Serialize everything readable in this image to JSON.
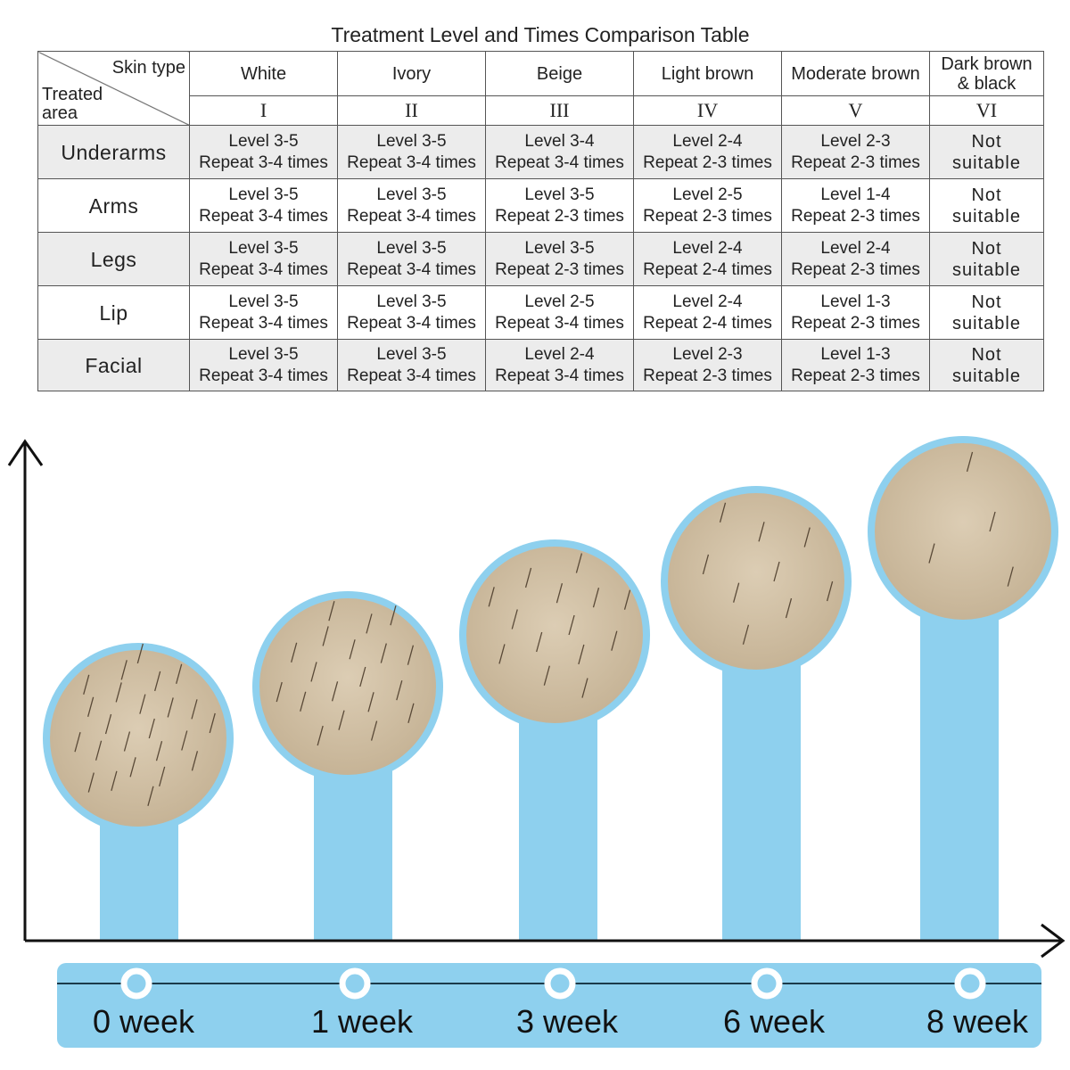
{
  "table": {
    "title": "Treatment Level and Times Comparison Table",
    "corner": {
      "top": "Skin type",
      "bottom": "Treated area"
    },
    "columns": [
      {
        "name": "White",
        "numeral": "I"
      },
      {
        "name": "Ivory",
        "numeral": "II"
      },
      {
        "name": "Beige",
        "numeral": "III"
      },
      {
        "name": "Light brown",
        "numeral": "IV"
      },
      {
        "name": "Moderate brown",
        "numeral": "V"
      },
      {
        "name": "Dark brown & black",
        "numeral": "VI"
      }
    ],
    "rows": [
      {
        "area": "Underarms",
        "cells": [
          [
            "Level 3-5",
            "Repeat 3-4 times"
          ],
          [
            "Level 3-5",
            "Repeat 3-4 times"
          ],
          [
            "Level 3-4",
            "Repeat 3-4 times"
          ],
          [
            "Level 2-4",
            "Repeat 2-3 times"
          ],
          [
            "Level 2-3",
            "Repeat 2-3 times"
          ],
          [
            "Not",
            "suitable"
          ]
        ]
      },
      {
        "area": "Arms",
        "cells": [
          [
            "Level 3-5",
            "Repeat 3-4 times"
          ],
          [
            "Level 3-5",
            "Repeat 3-4 times"
          ],
          [
            "Level 3-5",
            "Repeat 2-3 times"
          ],
          [
            "Level 2-5",
            "Repeat 2-3 times"
          ],
          [
            "Level 1-4",
            "Repeat 2-3 times"
          ],
          [
            "Not",
            "suitable"
          ]
        ]
      },
      {
        "area": "Legs",
        "cells": [
          [
            "Level 3-5",
            "Repeat 3-4 times"
          ],
          [
            "Level 3-5",
            "Repeat 3-4 times"
          ],
          [
            "Level 3-5",
            "Repeat 2-3 times"
          ],
          [
            "Level 2-4",
            "Repeat 2-4 times"
          ],
          [
            "Level 2-4",
            "Repeat 2-3 times"
          ],
          [
            "Not",
            "suitable"
          ]
        ]
      },
      {
        "area": "Lip",
        "cells": [
          [
            "Level 3-5",
            "Repeat 3-4 times"
          ],
          [
            "Level 3-5",
            "Repeat 3-4 times"
          ],
          [
            "Level 2-5",
            "Repeat 3-4 times"
          ],
          [
            "Level 2-4",
            "Repeat 2-4 times"
          ],
          [
            "Level 1-3",
            "Repeat 2-3 times"
          ],
          [
            "Not",
            "suitable"
          ]
        ]
      },
      {
        "area": "Facial",
        "cells": [
          [
            "Level 3-5",
            "Repeat 3-4 times"
          ],
          [
            "Level 3-5",
            "Repeat 3-4 times"
          ],
          [
            "Level 2-4",
            "Repeat 3-4 times"
          ],
          [
            "Level 2-3",
            "Repeat 2-3 times"
          ],
          [
            "Level 1-3",
            "Repeat 2-3 times"
          ],
          [
            "Not",
            "suitable"
          ]
        ]
      }
    ]
  },
  "timeline": {
    "labels": [
      "0 week",
      "1 week",
      "3 week",
      "6 week",
      "8 week"
    ]
  }
}
